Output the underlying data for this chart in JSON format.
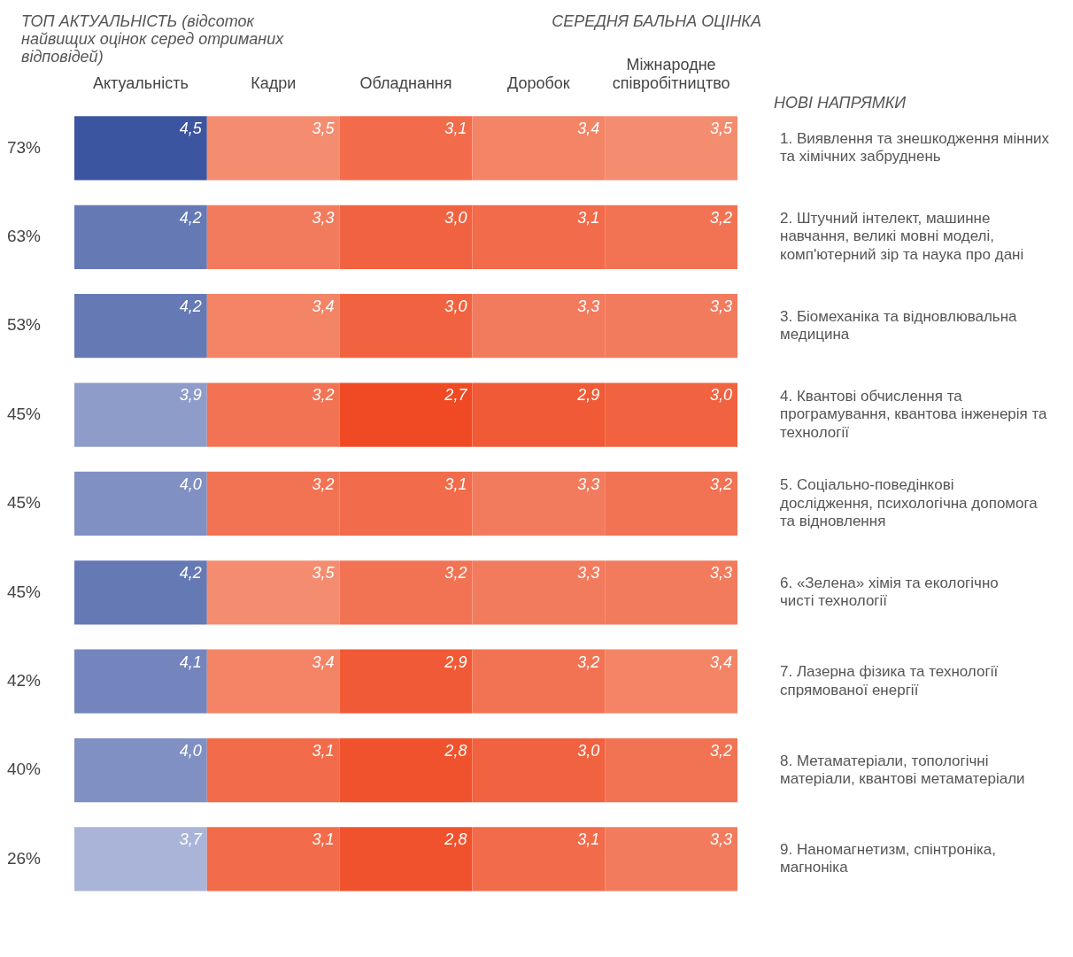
{
  "chart_data": {
    "type": "heatmap",
    "title": "СЕРЕДНЯ БАЛЬНА ОЦІНКА",
    "ylabel": "ТОП АКТУАЛЬНІСТЬ (відсоток найвищих оцінок серед отриманих відповідей)",
    "y2label": "НОВІ НАПРЯМКИ",
    "categories": [
      "Актуальність",
      "Кадри",
      "Обладнання",
      "Доробок",
      "Міжнародне співробітництво"
    ],
    "y_categories": [
      "73%",
      "63%",
      "53%",
      "45%",
      "45%",
      "45%",
      "42%",
      "40%",
      "26%"
    ],
    "y2_categories": [
      "1. Виявлення та знешкодження мінних та хімічних забруднень",
      "2. Штучний інтелект, машинне навчання, великі мовні моделі, комп'ютерний зір та наука про дані",
      "3. Біомеханіка та відновлювальна медицина",
      "4. Квантові обчислення та програмування, квантова інженерія та технології",
      "5. Соціально-поведінкові дослідження, психологічна допомога та відновлення",
      "6. «Зелена» хімія та екологічно чисті технології",
      "7. Лазерна фізика та технології спрямованої енергії",
      "8. Метаматеріали, топологічні матеріали, квантові метаматеріали",
      "9. Наномагнетизм, спінтроніка, магноніка"
    ],
    "cells": [
      [
        4.5,
        3.5,
        3.1,
        3.4,
        3.5
      ],
      [
        4.2,
        3.3,
        3.0,
        3.1,
        3.2
      ],
      [
        4.2,
        3.4,
        3.0,
        3.3,
        3.3
      ],
      [
        3.9,
        3.2,
        2.7,
        2.9,
        3.0
      ],
      [
        4.0,
        3.2,
        3.1,
        3.3,
        3.2
      ],
      [
        4.2,
        3.5,
        3.2,
        3.3,
        3.3
      ],
      [
        4.1,
        3.4,
        2.9,
        3.2,
        3.4
      ],
      [
        4.0,
        3.1,
        2.8,
        3.0,
        3.2
      ],
      [
        3.7,
        3.1,
        2.8,
        3.1,
        3.3
      ]
    ],
    "cell_labels": [
      [
        "4,5",
        "3,5",
        "3,1",
        "3,4",
        "3,5"
      ],
      [
        "4,2",
        "3,3",
        "3,0",
        "3,1",
        "3,2"
      ],
      [
        "4,2",
        "3,4",
        "3,0",
        "3,3",
        "3,3"
      ],
      [
        "3,9",
        "3,2",
        "2,7",
        "2,9",
        "3,0"
      ],
      [
        "4,0",
        "3,2",
        "3,1",
        "3,3",
        "3,2"
      ],
      [
        "4,2",
        "3,5",
        "3,2",
        "3,3",
        "3,3"
      ],
      [
        "4,1",
        "3,4",
        "2,9",
        "3,2",
        "3,4"
      ],
      [
        "4,0",
        "3,1",
        "2,8",
        "3,0",
        "3,2"
      ],
      [
        "3,7",
        "3,1",
        "2,8",
        "3,1",
        "3,3"
      ]
    ]
  }
}
